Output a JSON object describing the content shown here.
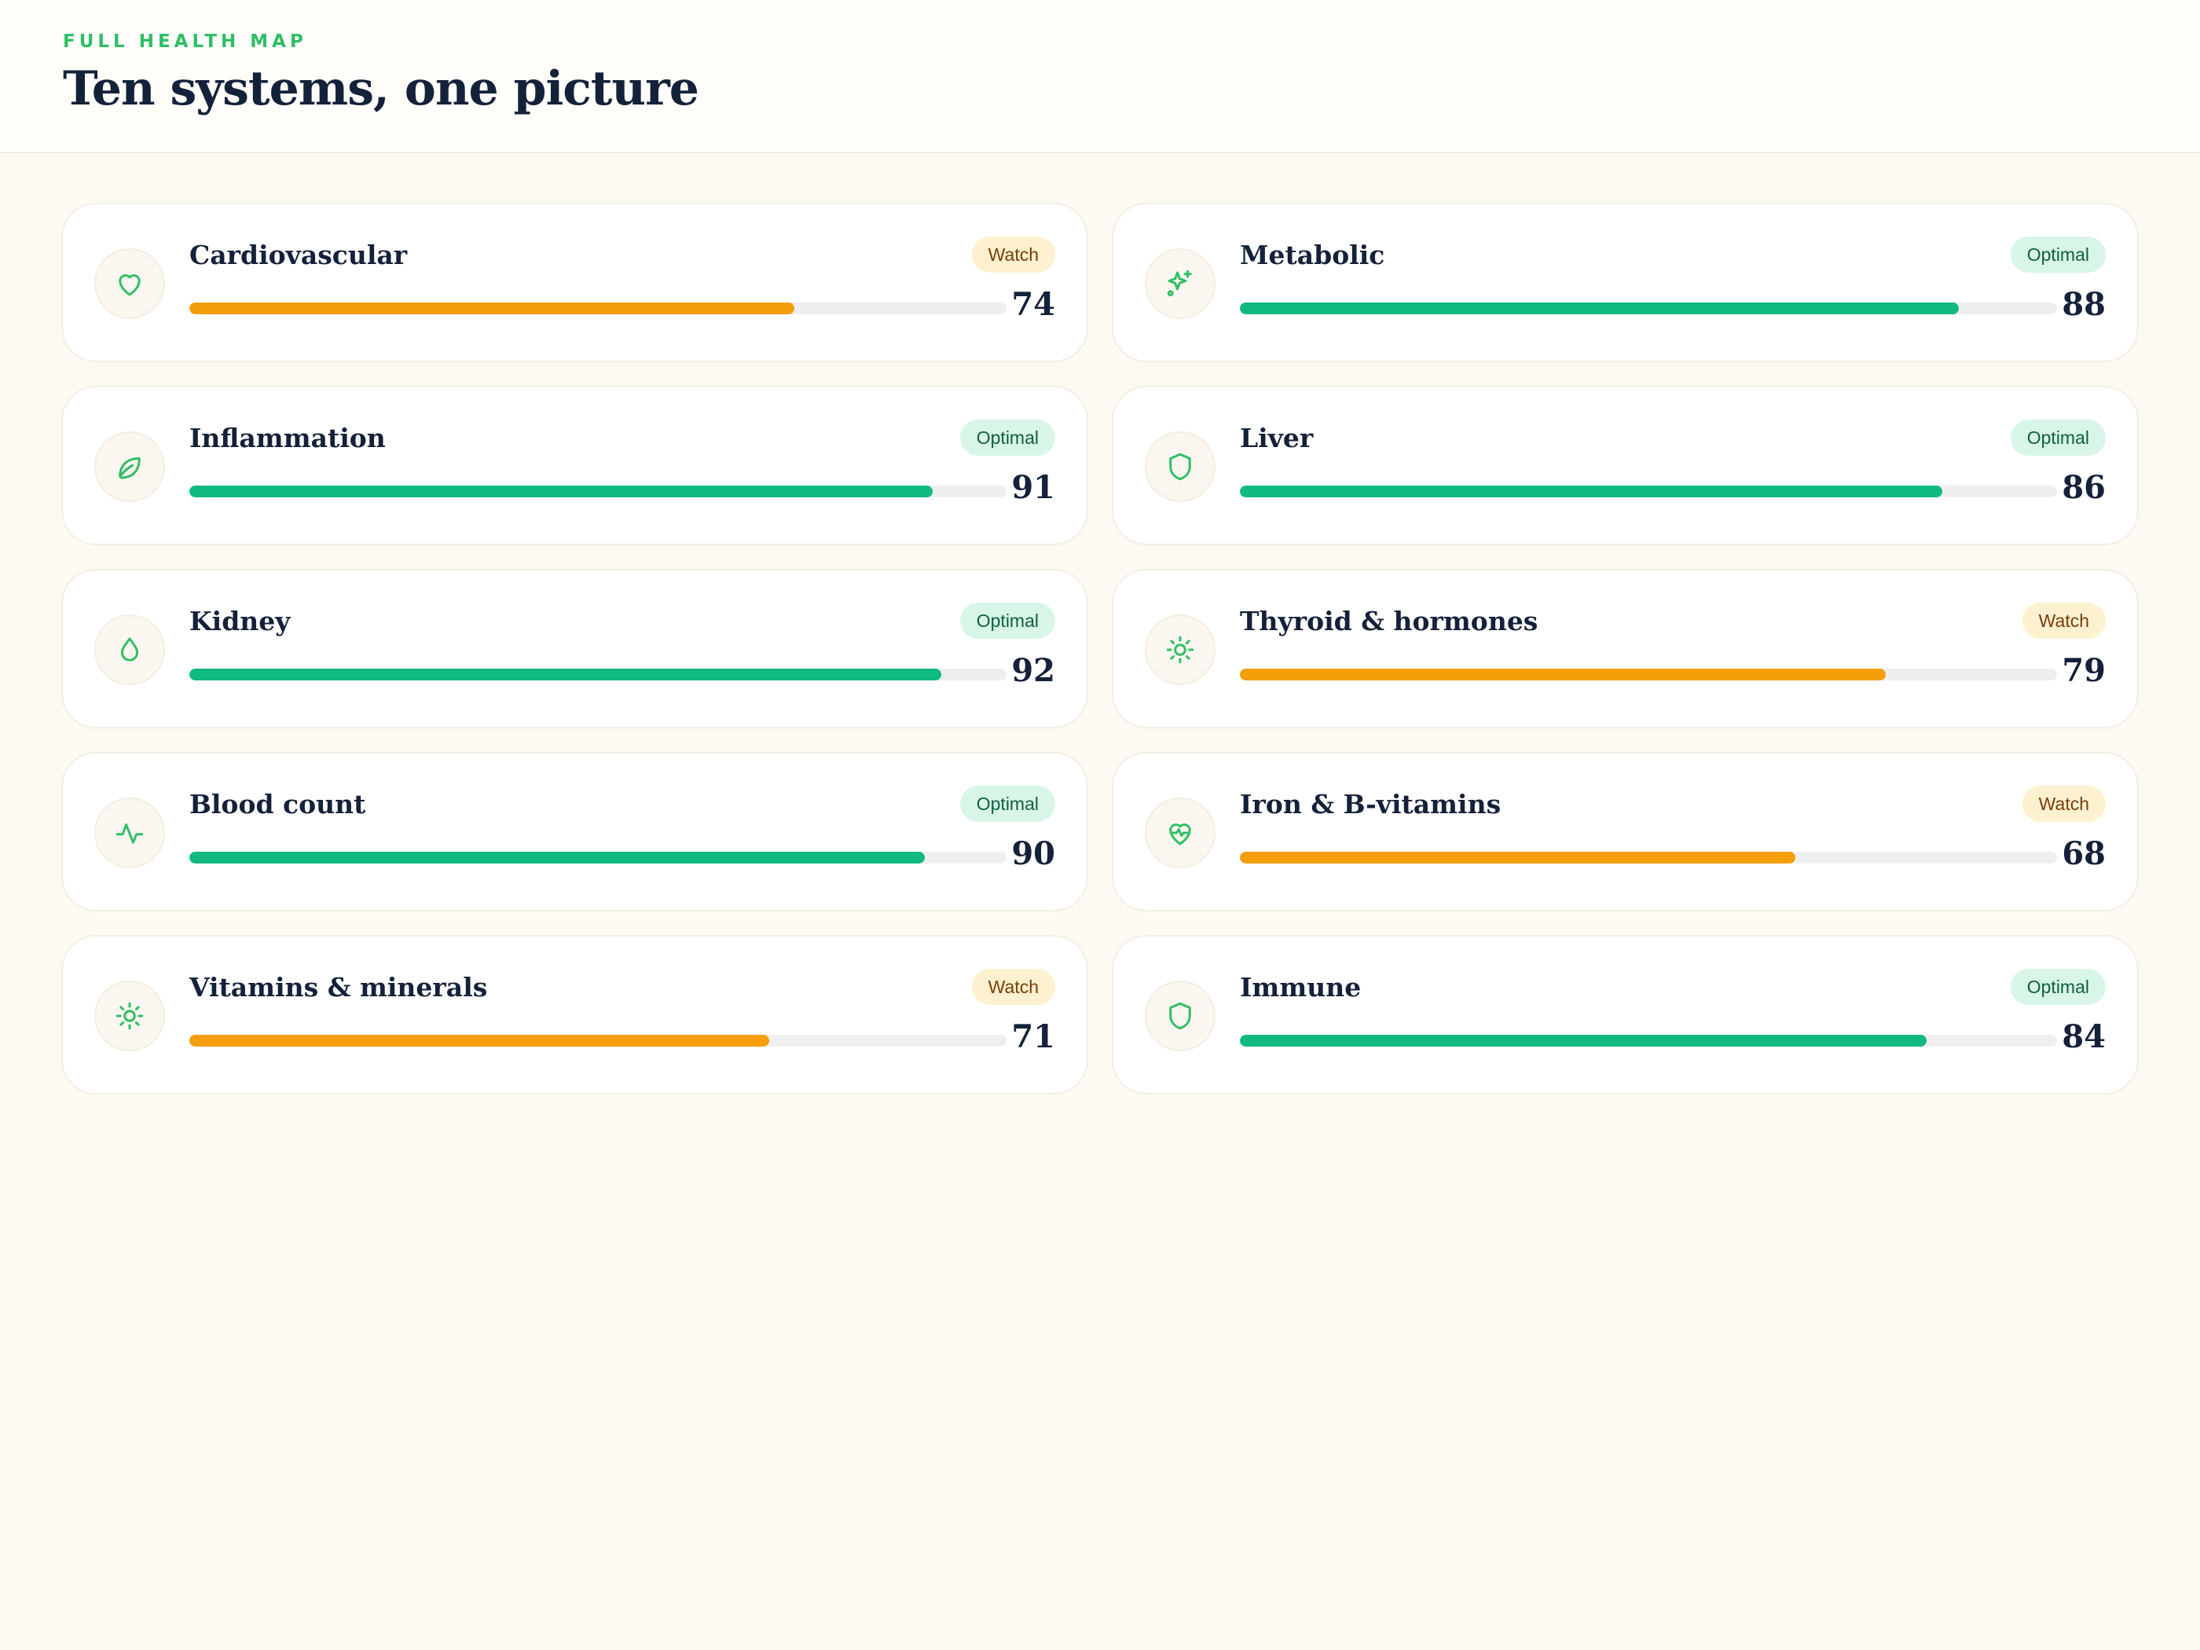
{
  "header": {
    "eyebrow": "FULL HEALTH MAP",
    "title": "Ten systems, one picture"
  },
  "colors": {
    "watch": "#f59e0b",
    "optimal": "#10b981",
    "icon": "#2fbf64"
  },
  "systems": [
    {
      "name": "Cardiovascular",
      "status": "Watch",
      "score": 74,
      "icon": "heart-icon"
    },
    {
      "name": "Metabolic",
      "status": "Optimal",
      "score": 88,
      "icon": "sparkles-icon"
    },
    {
      "name": "Inflammation",
      "status": "Optimal",
      "score": 91,
      "icon": "leaf-icon"
    },
    {
      "name": "Liver",
      "status": "Optimal",
      "score": 86,
      "icon": "shield-icon"
    },
    {
      "name": "Kidney",
      "status": "Optimal",
      "score": 92,
      "icon": "droplet-icon"
    },
    {
      "name": "Thyroid & hormones",
      "status": "Watch",
      "score": 79,
      "icon": "sun-icon"
    },
    {
      "name": "Blood count",
      "status": "Optimal",
      "score": 90,
      "icon": "activity-icon"
    },
    {
      "name": "Iron & B-vitamins",
      "status": "Watch",
      "score": 68,
      "icon": "heart-pulse-icon"
    },
    {
      "name": "Vitamins & minerals",
      "status": "Watch",
      "score": 71,
      "icon": "sun-icon"
    },
    {
      "name": "Immune",
      "status": "Optimal",
      "score": 84,
      "icon": "shield-icon"
    }
  ]
}
